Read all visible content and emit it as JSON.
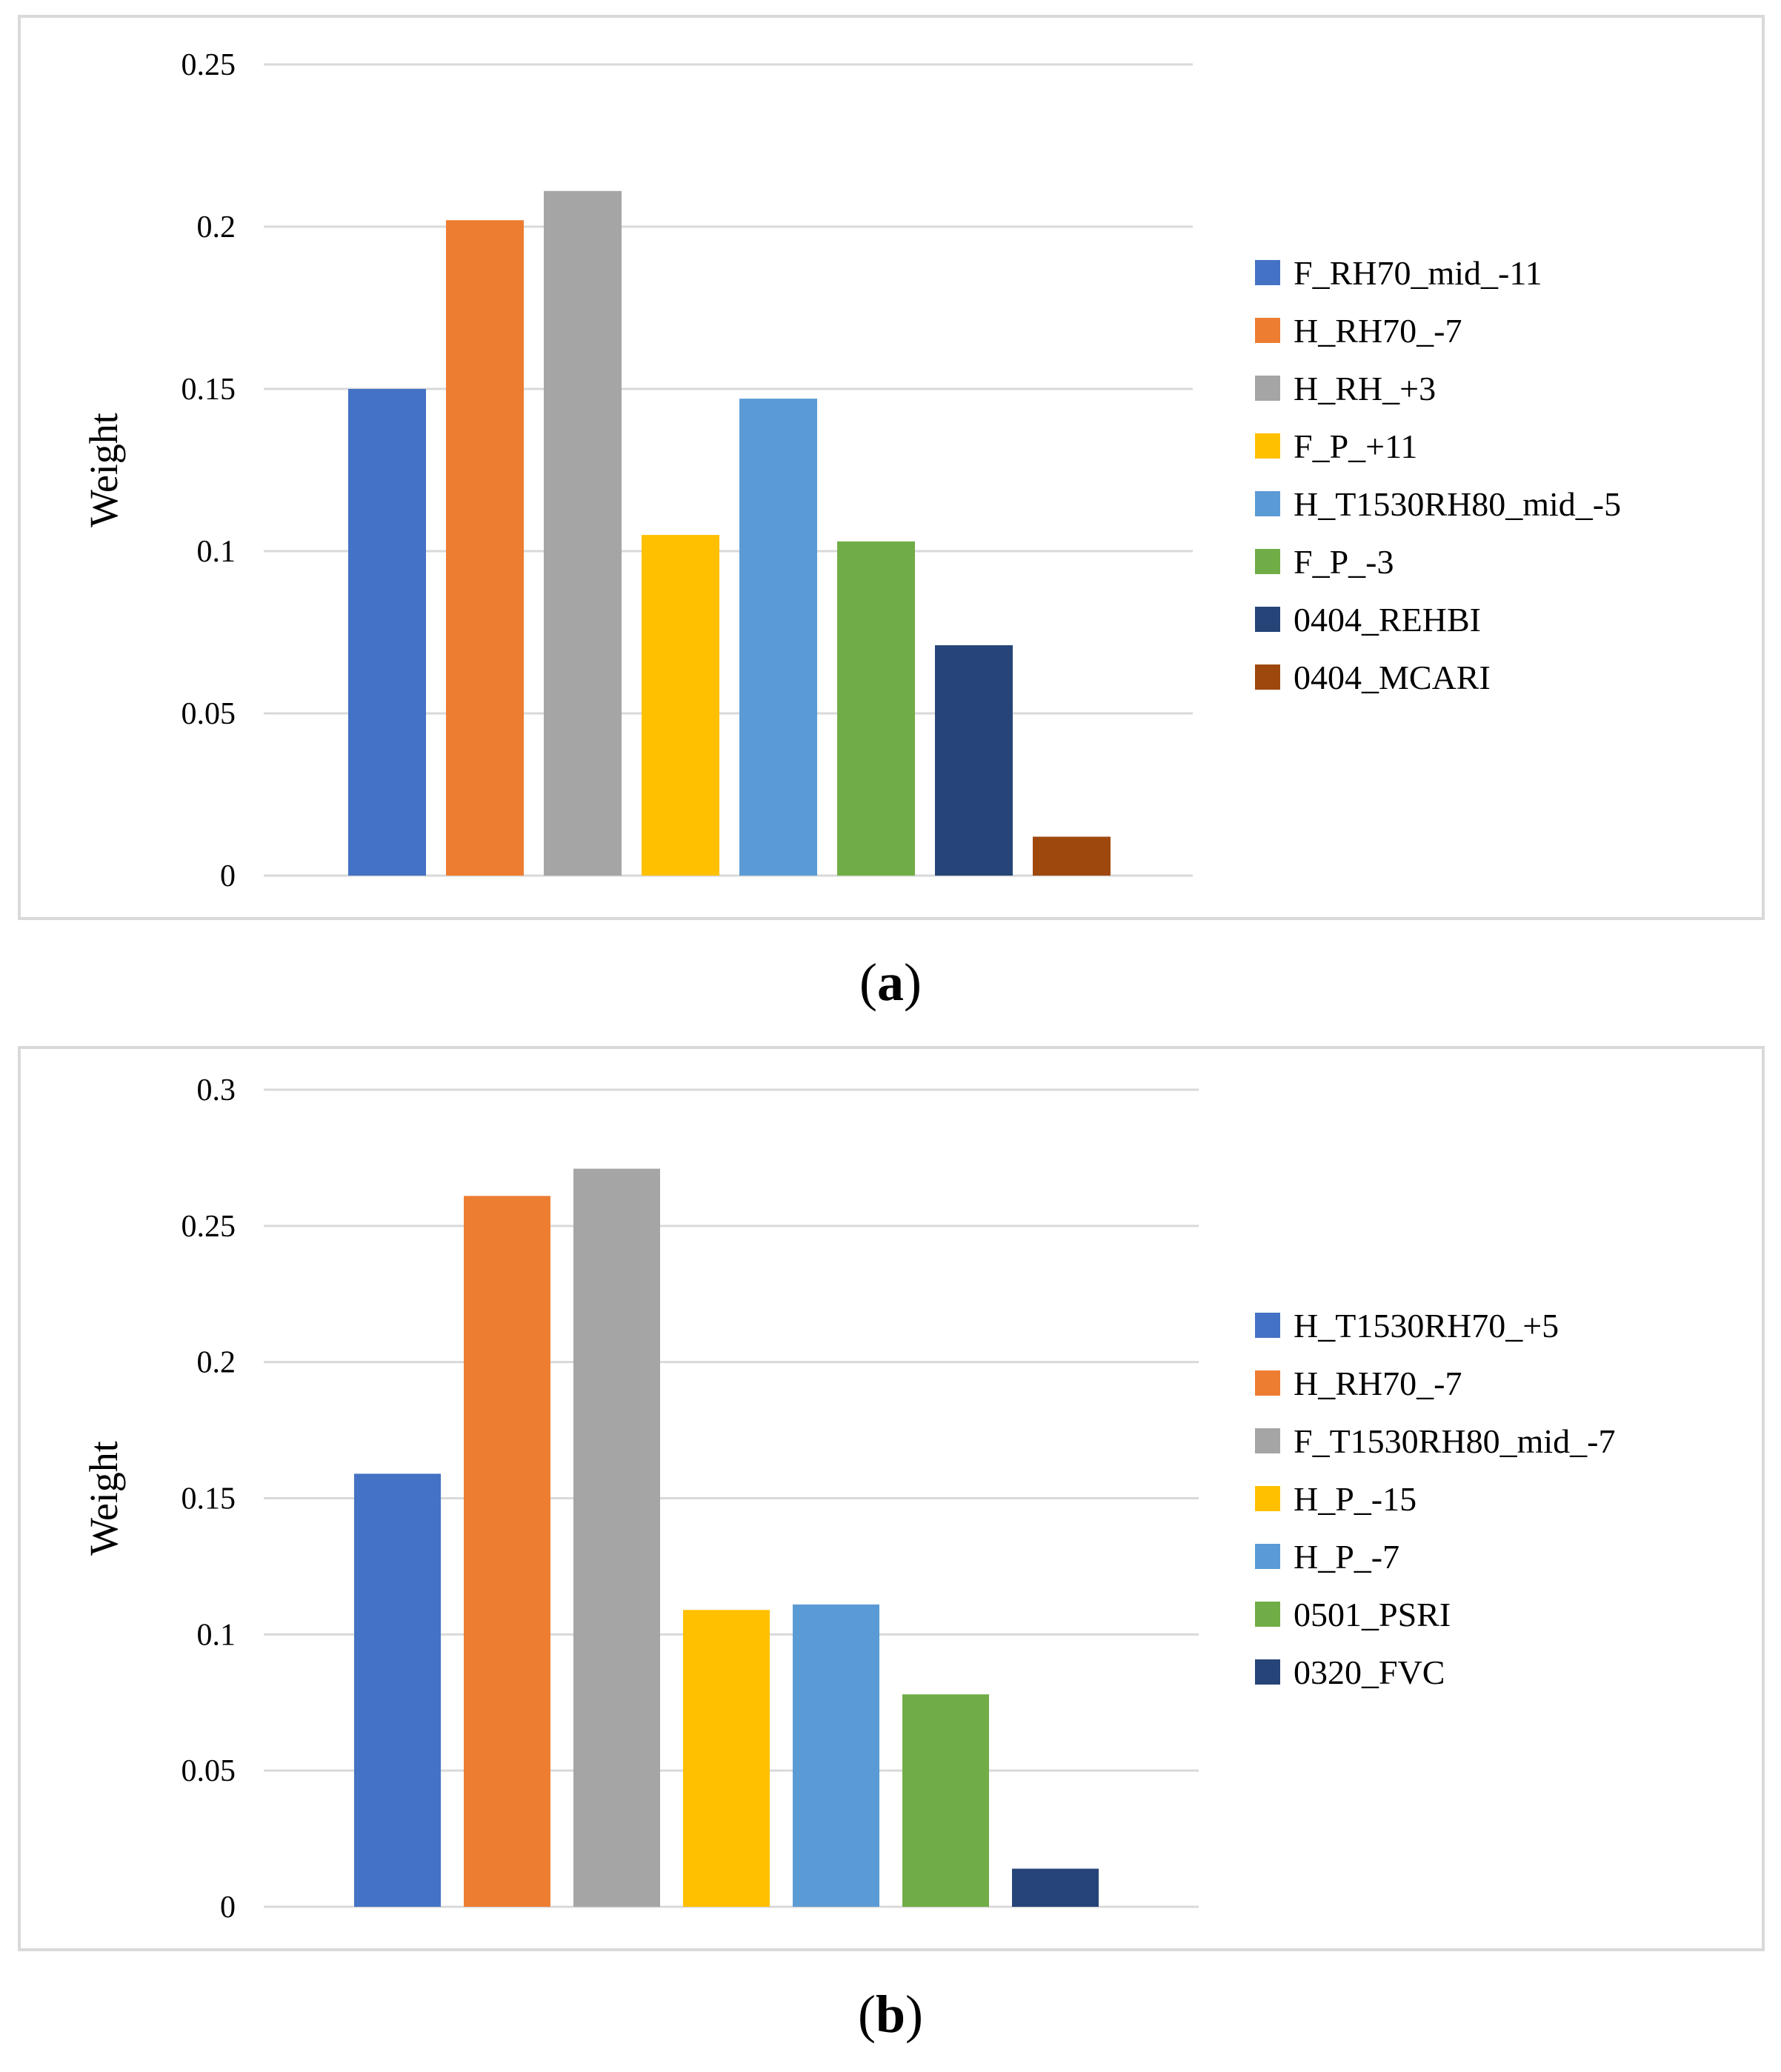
{
  "chart_data": [
    {
      "type": "bar",
      "panel": "a",
      "ylabel": "Weight",
      "xlabel": "",
      "ylim": [
        0,
        0.25
      ],
      "yticks": [
        "0",
        "0.05",
        "0.1",
        "0.15",
        "0.2",
        "0.25"
      ],
      "ytick_values": [
        0,
        0.05,
        0.1,
        0.15,
        0.2,
        0.25
      ],
      "grid": true,
      "legend_position": "right",
      "categories": [
        "F_RH70_mid_-11",
        "H_RH70_-7",
        "H_RH_+3",
        "F_P_+11",
        "H_T1530RH80_mid_-5",
        "F_P_-3",
        "0404_REHBI",
        "0404_MCARI"
      ],
      "values": [
        0.15,
        0.202,
        0.211,
        0.105,
        0.147,
        0.103,
        0.071,
        0.012
      ],
      "colors": [
        "#4472C4",
        "#ED7D31",
        "#A5A5A5",
        "#FFC000",
        "#5B9BD5",
        "#70AD47",
        "#264478",
        "#9E480E"
      ]
    },
    {
      "type": "bar",
      "panel": "b",
      "ylabel": "Weight",
      "xlabel": "",
      "ylim": [
        0,
        0.3
      ],
      "yticks": [
        "0",
        "0.05",
        "0.1",
        "0.15",
        "0.2",
        "0.25",
        "0.3"
      ],
      "ytick_values": [
        0,
        0.05,
        0.1,
        0.15,
        0.2,
        0.25,
        0.3
      ],
      "grid": true,
      "legend_position": "right",
      "categories": [
        "H_T1530RH70_+5",
        "H_RH70_-7",
        "F_T1530RH80_mid_-7",
        "H_P_-15",
        "H_P_-7",
        "0501_PSRI",
        "0320_FVC"
      ],
      "values": [
        0.159,
        0.261,
        0.271,
        0.109,
        0.111,
        0.078,
        0.014
      ],
      "colors": [
        "#4472C4",
        "#ED7D31",
        "#A5A5A5",
        "#FFC000",
        "#5B9BD5",
        "#70AD47",
        "#264478"
      ]
    }
  ],
  "captions": {
    "a": {
      "open": "(",
      "letter": "a",
      "close": ")"
    },
    "b": {
      "open": "(",
      "letter": "b",
      "close": ")"
    }
  }
}
